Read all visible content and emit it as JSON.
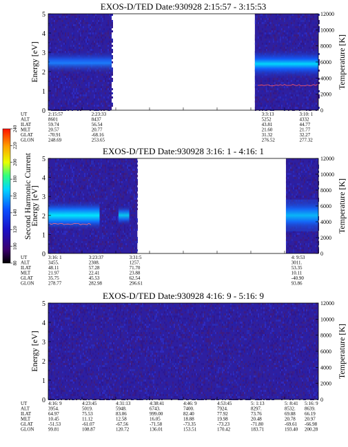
{
  "colorbar": {
    "label": "Second Harmonic Current",
    "ticks": [
      "80",
      "100",
      "120",
      "140",
      "160",
      "180",
      "200",
      "220",
      "240"
    ]
  },
  "chart_data": [
    {
      "type": "heatmap",
      "title": "EXOS-D/TED   Date:930928  2:15:57 - 3:15:53",
      "ylabel": "Energy [eV]",
      "y2label": "Temperature [K]",
      "ylim": [
        0,
        5
      ],
      "y2lim": [
        0,
        12000
      ],
      "yticks": [
        "0",
        "1",
        "2",
        "3",
        "4",
        "5"
      ],
      "y2ticks": [
        "0",
        "2000",
        "4000",
        "6000",
        "8000",
        "10000",
        "12000"
      ],
      "data_segments": [
        [
          0.0,
          0.235
        ],
        [
          0.765,
          1.0
        ]
      ],
      "band_energy_eV": 2.5,
      "temperature_trace": "red trace ~1.3 eV in right segment",
      "ephemeris_labels": [
        "UT",
        "ALT",
        "ILAT",
        "MLT",
        "GLAT",
        "GLON"
      ],
      "ephemeris": [
        {
          "at": 0.0,
          "values": [
            "2:15:57",
            "8601",
            "59.74",
            "20.57",
            "-70.91",
            "248.69"
          ]
        },
        {
          "at": 0.16,
          "values": [
            "2:23:33",
            "8437",
            "56.54",
            "20.77",
            "-68.16",
            "253.65"
          ]
        },
        {
          "at": 0.79,
          "values": [
            "3:3:13",
            "5252",
            "43.81",
            "21.60",
            "31.32",
            "276.52"
          ]
        },
        {
          "at": 0.93,
          "values": [
            "3:10: 1",
            "4332",
            "44.77",
            "21.77",
            "32.27",
            "277.32"
          ]
        }
      ]
    },
    {
      "type": "heatmap",
      "title": "EXOS-D/TED   Date:930928  3:16: 1 - 4:16: 1",
      "ylabel": "Energy [eV]",
      "y2label": "Temperature [K]",
      "ylim": [
        0,
        5
      ],
      "y2lim": [
        0,
        12000
      ],
      "yticks": [
        "0",
        "1",
        "2",
        "3",
        "4",
        "5"
      ],
      "y2ticks": [
        "0",
        "2000",
        "4000",
        "6000",
        "8000",
        "10000",
        "12000"
      ],
      "data_segments": [
        [
          0.0,
          0.33
        ],
        [
          0.88,
          1.0
        ]
      ],
      "band_energy_eV": 2.0,
      "temperature_trace": "red trace ~1.5 eV in left segment",
      "ephemeris_labels": [
        "UT",
        "ALT",
        "ILAT",
        "MLT",
        "GLAT",
        "GLON"
      ],
      "ephemeris": [
        {
          "at": 0.0,
          "values": [
            "3:16: 1",
            "3455.",
            "48.11",
            "21.97",
            "35.75",
            "278.77"
          ]
        },
        {
          "at": 0.15,
          "values": [
            "3:23:37",
            "2308.",
            "57.28",
            "22.41",
            "45.53",
            "282.98"
          ]
        },
        {
          "at": 0.3,
          "values": [
            "3:31:5",
            "1257.",
            "71.70",
            "23.88",
            "62.54",
            "296.61"
          ]
        },
        {
          "at": 0.9,
          "values": [
            "4: 9:53",
            "3011.",
            "53.35",
            "10.11",
            "-40.90",
            "93.86"
          ]
        }
      ]
    },
    {
      "type": "heatmap",
      "title": "EXOS-D/TED   Date:930928  4:16: 9 - 5:16: 9",
      "ylabel": "Energy [eV]",
      "y2label": "Temperature [K]",
      "ylim": [
        0,
        5
      ],
      "y2lim": [
        0,
        12000
      ],
      "yticks": [
        "0",
        "1",
        "2",
        "3",
        "4",
        "5"
      ],
      "y2ticks": [
        "0",
        "2000",
        "4000",
        "6000",
        "8000",
        "10000",
        "12000"
      ],
      "data_segments": [
        [
          0.0,
          1.0
        ]
      ],
      "band_energy_eV": null,
      "temperature_trace": "none",
      "ephemeris_labels": [
        "UT",
        "ALT",
        "ILAT",
        "MLT",
        "GLAT",
        "GLON"
      ],
      "ephemeris": [
        {
          "at": 0.0,
          "values": [
            "4:16: 9",
            "3954.",
            "64.97",
            "10.45",
            "-51.53",
            "99.81"
          ]
        },
        {
          "at": 0.125,
          "values": [
            "4:23:45",
            "5019.",
            "75.53",
            "11.12",
            "-61.07",
            "108.87"
          ]
        },
        {
          "at": 0.25,
          "values": [
            "4:31:13",
            "5948.",
            "83.06",
            "12.58",
            "-67.56",
            "120.72"
          ]
        },
        {
          "at": 0.375,
          "values": [
            "4:38:41",
            "6743.",
            "999.00",
            "16.05",
            "-71.58",
            "136.01"
          ]
        },
        {
          "at": 0.5,
          "values": [
            "4:46: 9",
            "7400.",
            "82.40",
            "18.88",
            "-73.35",
            "153.51"
          ]
        },
        {
          "at": 0.625,
          "values": [
            "4:53:45",
            "7924.",
            "77.92",
            "19.98",
            "-73.23",
            "170.42"
          ]
        },
        {
          "at": 0.75,
          "values": [
            "5: 1:13",
            "8297.",
            "73.76",
            "20.48",
            "-71.80",
            "183.71"
          ]
        },
        {
          "at": 0.875,
          "values": [
            "5: 8:41",
            "8532.",
            "69.88",
            "20.78",
            "-69.61",
            "193.40"
          ]
        },
        {
          "at": 1.0,
          "values": [
            "5:16: 9",
            "8639.",
            "66.19",
            "20.97",
            "-66.98",
            "200.28"
          ]
        }
      ]
    }
  ]
}
